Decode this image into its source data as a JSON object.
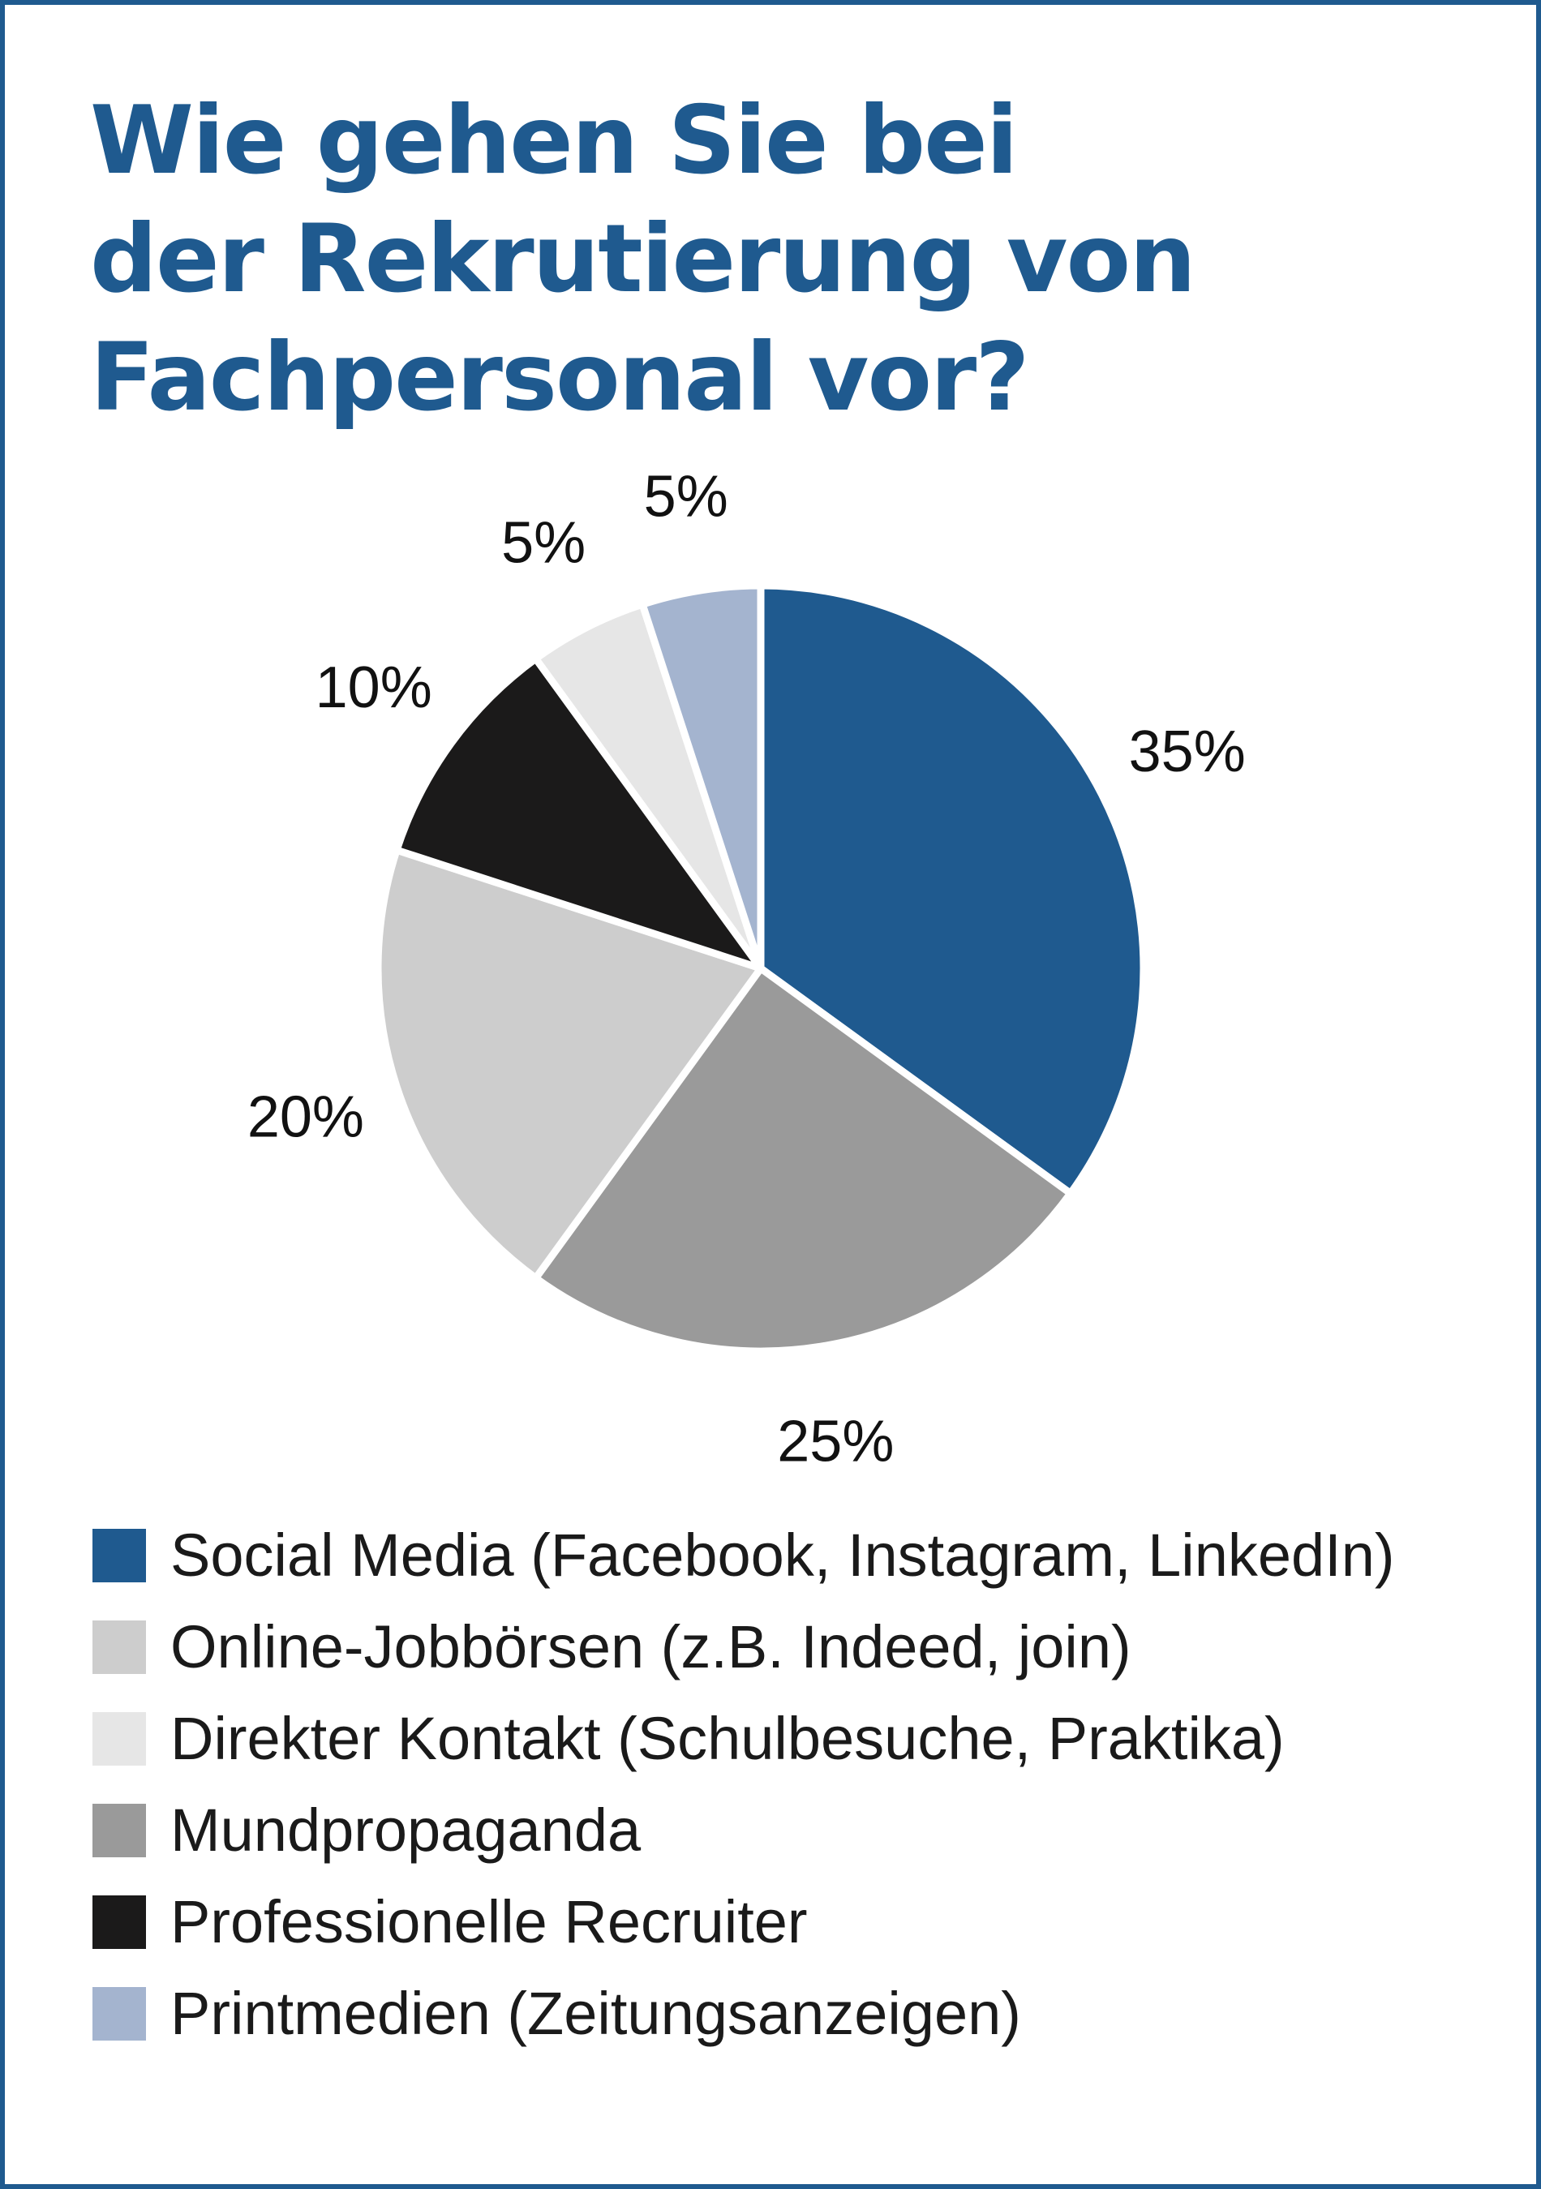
{
  "title_lines": [
    "Wie gehen Sie bei",
    "der Rekrutierung von",
    "Fachpersonal vor?"
  ],
  "chart_data": {
    "type": "pie",
    "title": "Wie gehen Sie bei der Rekrutierung von Fachpersonal vor?",
    "start_angle_deg": 0,
    "direction": "clockwise",
    "slices": [
      {
        "label": "Social Media (Facebook, Instagram, LinkedIn)",
        "value": 35,
        "value_label": "35%",
        "color": "#1f5a8f",
        "name": "social-media"
      },
      {
        "label": "Mundpropaganda",
        "value": 25,
        "value_label": "25%",
        "color": "#9a9a9a",
        "name": "mundpropaganda"
      },
      {
        "label": "Online-Jobbörsen (z.B. Indeed, join)",
        "value": 20,
        "value_label": "20%",
        "color": "#cdcdcd",
        "name": "online-jobboersen"
      },
      {
        "label": "Professionelle Recruiter",
        "value": 10,
        "value_label": "10%",
        "color": "#1b1a1a",
        "name": "professionelle-recruiter"
      },
      {
        "label": "Direkter Kontakt (Schulbesuche, Praktika)",
        "value": 5,
        "value_label": "5%",
        "color": "#e6e6e6",
        "name": "direkter-kontakt"
      },
      {
        "label": "Printmedien (Zeitungsanzeigen)",
        "value": 5,
        "value_label": "5%",
        "color": "#a4b4cf",
        "name": "printmedien"
      }
    ],
    "legend_order": [
      "Social Media (Facebook, Instagram, LinkedIn)",
      "Online-Jobbörsen (z.B. Indeed, join)",
      "Direkter Kontakt (Schulbesuche, Praktika)",
      "Mundpropaganda",
      "Professionelle Recruiter",
      "Printmedien (Zeitungsanzeigen)"
    ],
    "legend_position": "bottom"
  }
}
